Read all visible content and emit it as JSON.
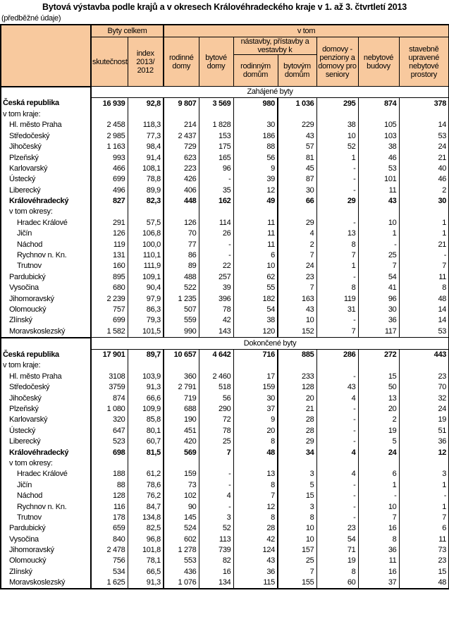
{
  "title": "Bytová výstavba podle krajů a v okresech Královéhradeckého kraje v 1. až 3. čtvrtletí 2013",
  "subtitle": "(předběžné údaje)",
  "header": {
    "byty_celkem": "Byty celkem",
    "v_tom": "v tom",
    "skutecnost": "skutečnost",
    "index": "index 2013/ 2012",
    "rodinne_domy": "rodinné domy",
    "bytove_domy": "bytové domy",
    "nastavby": "nástavby, přístavby a vestavby k",
    "rodinnym_domum": "rodinným domům",
    "bytovym_domum": "bytovým domům",
    "domovy": "domovy - penziony a domovy pro seniory",
    "nebytove_budovy": "nebytové budovy",
    "stavebne": "stavebně upravené nebytové prostory"
  },
  "colors": {
    "header_bg": "#F8C99E"
  },
  "sections": [
    {
      "title": "Zahájené byty",
      "rows": [
        {
          "type": "total",
          "label": "Česká republika",
          "values": [
            "16 939",
            "92,8",
            "9 807",
            "3 569",
            "980",
            "1 036",
            "295",
            "874",
            "378"
          ]
        },
        {
          "type": "note",
          "label": "v tom kraje:",
          "values": []
        },
        {
          "type": "region",
          "label": "Hl. město Praha",
          "values": [
            "2 458",
            "118,3",
            "214",
            "1 828",
            "30",
            "229",
            "38",
            "105",
            "14"
          ]
        },
        {
          "type": "region",
          "label": "Středočeský",
          "values": [
            "2 985",
            "77,3",
            "2 437",
            "153",
            "186",
            "43",
            "10",
            "103",
            "53"
          ]
        },
        {
          "type": "region",
          "label": "Jihočeský",
          "values": [
            "1 163",
            "98,4",
            "729",
            "175",
            "88",
            "57",
            "52",
            "38",
            "24"
          ]
        },
        {
          "type": "region",
          "label": "Plzeňský",
          "values": [
            "993",
            "91,4",
            "623",
            "165",
            "56",
            "81",
            "1",
            "46",
            "21"
          ]
        },
        {
          "type": "region",
          "label": "Karlovarský",
          "values": [
            "466",
            "108,1",
            "223",
            "96",
            "9",
            "45",
            "-",
            "53",
            "40"
          ]
        },
        {
          "type": "region",
          "label": "Ústecký",
          "values": [
            "699",
            "78,8",
            "426",
            "-",
            "39",
            "87",
            "-",
            "101",
            "46"
          ]
        },
        {
          "type": "region",
          "label": "Liberecký",
          "values": [
            "496",
            "89,9",
            "406",
            "35",
            "12",
            "30",
            "-",
            "11",
            "2"
          ]
        },
        {
          "type": "region-bold",
          "label": "Královéhradecký",
          "values": [
            "827",
            "82,3",
            "448",
            "162",
            "49",
            "66",
            "29",
            "43",
            "30"
          ]
        },
        {
          "type": "note2",
          "label": "v tom okresy:",
          "values": []
        },
        {
          "type": "district",
          "label": "Hradec Králové",
          "values": [
            "291",
            "57,5",
            "126",
            "114",
            "11",
            "29",
            "-",
            "10",
            "1"
          ]
        },
        {
          "type": "district",
          "label": "Jičín",
          "values": [
            "126",
            "106,8",
            "70",
            "26",
            "11",
            "4",
            "13",
            "1",
            "1"
          ]
        },
        {
          "type": "district",
          "label": "Náchod",
          "values": [
            "119",
            "100,0",
            "77",
            "-",
            "11",
            "2",
            "8",
            "-",
            "21"
          ]
        },
        {
          "type": "district",
          "label": "Rychnov n. Kn.",
          "values": [
            "131",
            "110,1",
            "86",
            "-",
            "6",
            "7",
            "7",
            "25",
            "-"
          ]
        },
        {
          "type": "district",
          "label": "Trutnov",
          "values": [
            "160",
            "111,9",
            "89",
            "22",
            "10",
            "24",
            "1",
            "7",
            "7"
          ]
        },
        {
          "type": "region",
          "label": "Pardubický",
          "values": [
            "895",
            "109,1",
            "488",
            "257",
            "62",
            "23",
            "-",
            "54",
            "11"
          ]
        },
        {
          "type": "region",
          "label": "Vysočina",
          "values": [
            "680",
            "90,4",
            "522",
            "39",
            "55",
            "7",
            "8",
            "41",
            "8"
          ]
        },
        {
          "type": "region",
          "label": "Jihomoravský",
          "values": [
            "2 239",
            "97,9",
            "1 235",
            "396",
            "182",
            "163",
            "119",
            "96",
            "48"
          ]
        },
        {
          "type": "region",
          "label": "Olomoucký",
          "values": [
            "757",
            "86,3",
            "507",
            "78",
            "54",
            "43",
            "31",
            "30",
            "14"
          ]
        },
        {
          "type": "region",
          "label": "Zlínský",
          "values": [
            "699",
            "79,3",
            "559",
            "42",
            "38",
            "10",
            "-",
            "36",
            "14"
          ]
        },
        {
          "type": "region",
          "label": "Moravskoslezský",
          "values": [
            "1 582",
            "101,5",
            "990",
            "143",
            "120",
            "152",
            "7",
            "117",
            "53"
          ]
        }
      ]
    },
    {
      "title": "Dokončené byty",
      "rows": [
        {
          "type": "total",
          "label": "Česká republika",
          "values": [
            "17 901",
            "89,7",
            "10 657",
            "4 642",
            "716",
            "885",
            "286",
            "272",
            "443"
          ]
        },
        {
          "type": "note",
          "label": "v tom kraje:",
          "values": []
        },
        {
          "type": "region",
          "label": "Hl. město Praha",
          "values": [
            "3108",
            "103,9",
            "360",
            "2 460",
            "17",
            "233",
            "-",
            "15",
            "23"
          ]
        },
        {
          "type": "region",
          "label": "Středočeský",
          "values": [
            "3759",
            "91,3",
            "2 791",
            "518",
            "159",
            "128",
            "43",
            "50",
            "70"
          ]
        },
        {
          "type": "region",
          "label": "Jihočeský",
          "values": [
            "874",
            "66,6",
            "719",
            "56",
            "30",
            "20",
            "4",
            "13",
            "32"
          ]
        },
        {
          "type": "region",
          "label": "Plzeňský",
          "values": [
            "1 080",
            "109,9",
            "688",
            "290",
            "37",
            "21",
            "-",
            "20",
            "24"
          ]
        },
        {
          "type": "region",
          "label": "Karlovarský",
          "values": [
            "320",
            "85,8",
            "190",
            "72",
            "9",
            "28",
            "-",
            "2",
            "19"
          ]
        },
        {
          "type": "region",
          "label": "Ústecký",
          "values": [
            "647",
            "80,1",
            "451",
            "78",
            "20",
            "28",
            "-",
            "19",
            "51"
          ]
        },
        {
          "type": "region",
          "label": "Liberecký",
          "values": [
            "523",
            "60,7",
            "420",
            "25",
            "8",
            "29",
            "-",
            "5",
            "36"
          ]
        },
        {
          "type": "region-bold",
          "label": "Královéhradecký",
          "values": [
            "698",
            "81,5",
            "569",
            "7",
            "48",
            "34",
            "4",
            "24",
            "12"
          ]
        },
        {
          "type": "note2",
          "label": "v tom okresy:",
          "values": []
        },
        {
          "type": "district",
          "label": "Hradec Králové",
          "values": [
            "188",
            "61,2",
            "159",
            "-",
            "13",
            "3",
            "4",
            "6",
            "3"
          ]
        },
        {
          "type": "district",
          "label": "Jičín",
          "values": [
            "88",
            "78,6",
            "73",
            "-",
            "8",
            "5",
            "-",
            "1",
            "1"
          ]
        },
        {
          "type": "district",
          "label": "Náchod",
          "values": [
            "128",
            "76,2",
            "102",
            "4",
            "7",
            "15",
            "-",
            "-",
            "-"
          ]
        },
        {
          "type": "district",
          "label": "Rychnov n. Kn.",
          "values": [
            "116",
            "84,7",
            "90",
            "-",
            "12",
            "3",
            "-",
            "10",
            "1"
          ]
        },
        {
          "type": "district",
          "label": "Trutnov",
          "values": [
            "178",
            "134,8",
            "145",
            "3",
            "8",
            "8",
            "-",
            "7",
            "7"
          ]
        },
        {
          "type": "region",
          "label": "Pardubický",
          "values": [
            "659",
            "82,5",
            "524",
            "52",
            "28",
            "10",
            "23",
            "16",
            "6"
          ]
        },
        {
          "type": "region",
          "label": "Vysočina",
          "values": [
            "840",
            "96,8",
            "602",
            "113",
            "42",
            "10",
            "54",
            "8",
            "11"
          ]
        },
        {
          "type": "region",
          "label": "Jihomoravský",
          "values": [
            "2 478",
            "101,8",
            "1 278",
            "739",
            "124",
            "157",
            "71",
            "36",
            "73"
          ]
        },
        {
          "type": "region",
          "label": "Olomoucký",
          "values": [
            "756",
            "78,1",
            "553",
            "82",
            "43",
            "25",
            "19",
            "11",
            "23"
          ]
        },
        {
          "type": "region",
          "label": "Zlínský",
          "values": [
            "534",
            "66,5",
            "436",
            "16",
            "36",
            "7",
            "8",
            "16",
            "15"
          ]
        },
        {
          "type": "region",
          "label": "Moravskoslezský",
          "values": [
            "1 625",
            "91,3",
            "1 076",
            "134",
            "115",
            "155",
            "60",
            "37",
            "48"
          ]
        }
      ]
    }
  ]
}
